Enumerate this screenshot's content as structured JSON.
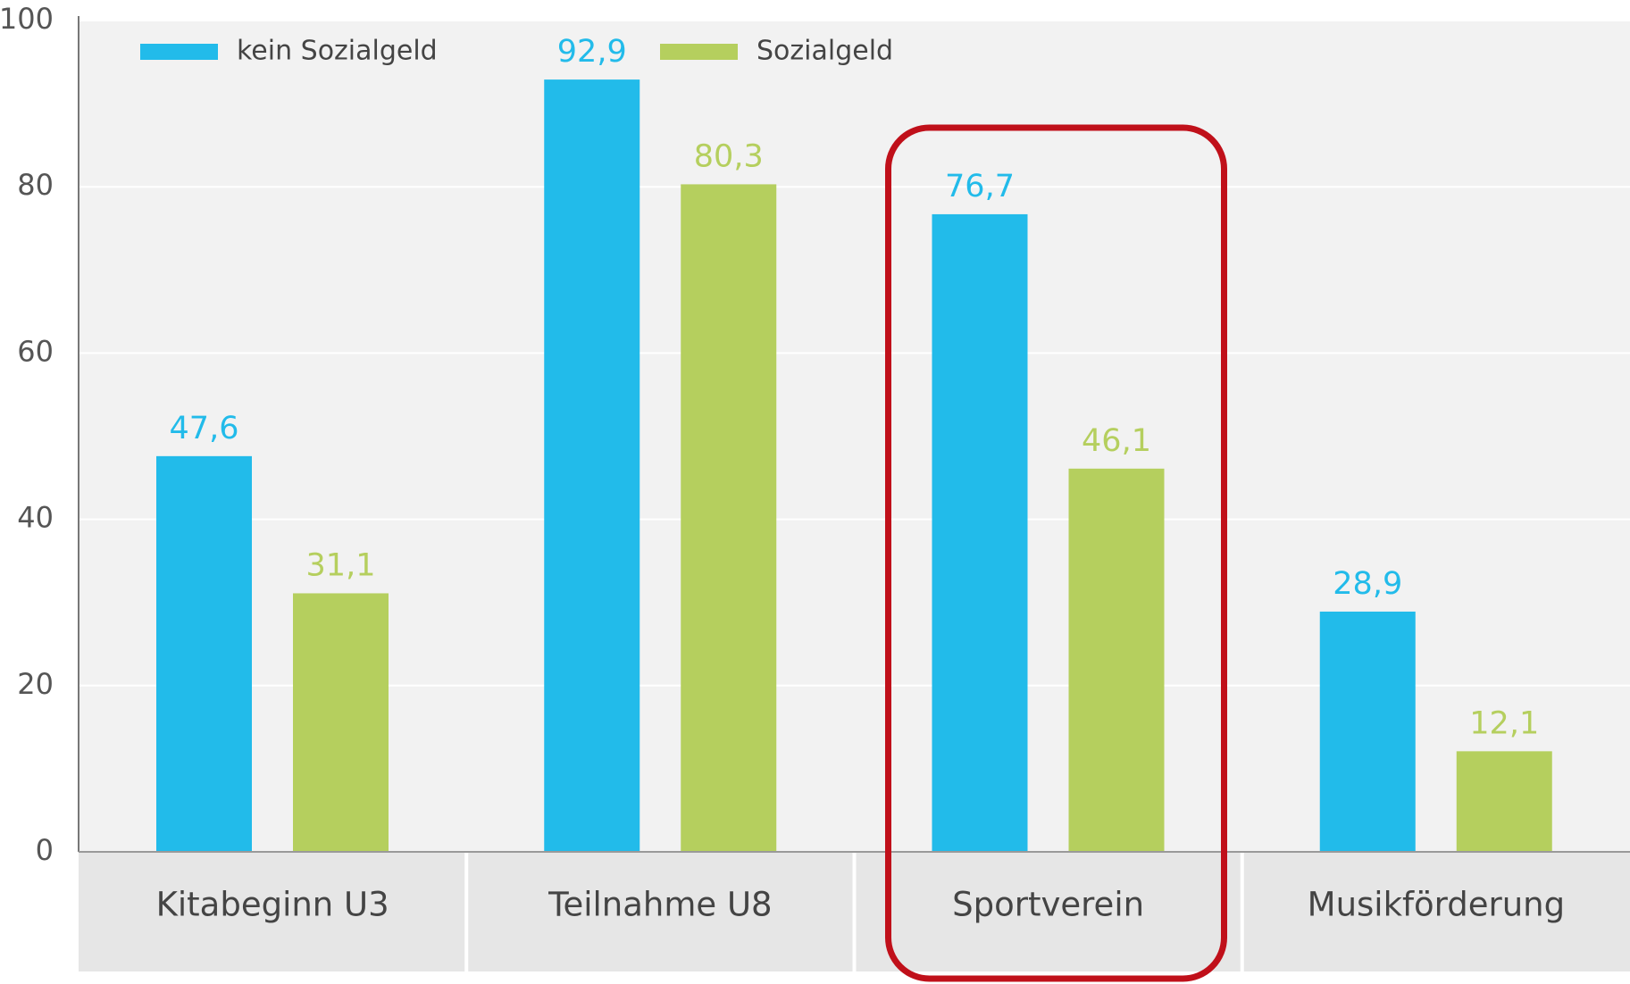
{
  "chart_data": {
    "type": "bar",
    "categories": [
      "Kitabeginn U3",
      "Teilnahme U8",
      "Sportverein",
      "Musikförderung"
    ],
    "series": [
      {
        "name": "kein Sozialgeld",
        "color": "#22bbea",
        "values": [
          47.6,
          92.9,
          76.7,
          28.9
        ],
        "value_labels": [
          "47,6",
          "92,9",
          "76,7",
          "28,9"
        ]
      },
      {
        "name": "Sozialgeld",
        "color": "#b5cf5e",
        "values": [
          31.1,
          80.3,
          46.1,
          12.1
        ],
        "value_labels": [
          "31,1",
          "80,3",
          "46,1",
          "12,1"
        ]
      }
    ],
    "ylim": [
      0,
      100
    ],
    "yticks": [
      0,
      20,
      40,
      60,
      80,
      100
    ],
    "grid": true
  }
}
